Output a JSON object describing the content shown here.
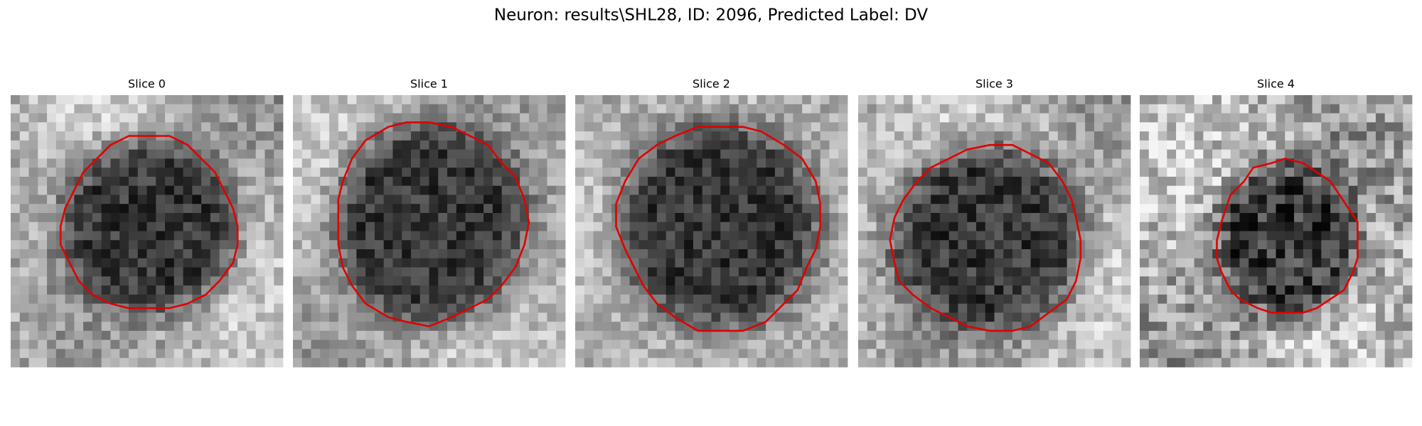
{
  "figure": {
    "title": "Neuron: results\\SHL28, ID: 2096, Predicted Label: DV",
    "panels": [
      {
        "title": "Slice 0"
      },
      {
        "title": "Slice 1"
      },
      {
        "title": "Slice 2"
      },
      {
        "title": "Slice 3"
      },
      {
        "title": "Slice 4"
      }
    ]
  }
}
